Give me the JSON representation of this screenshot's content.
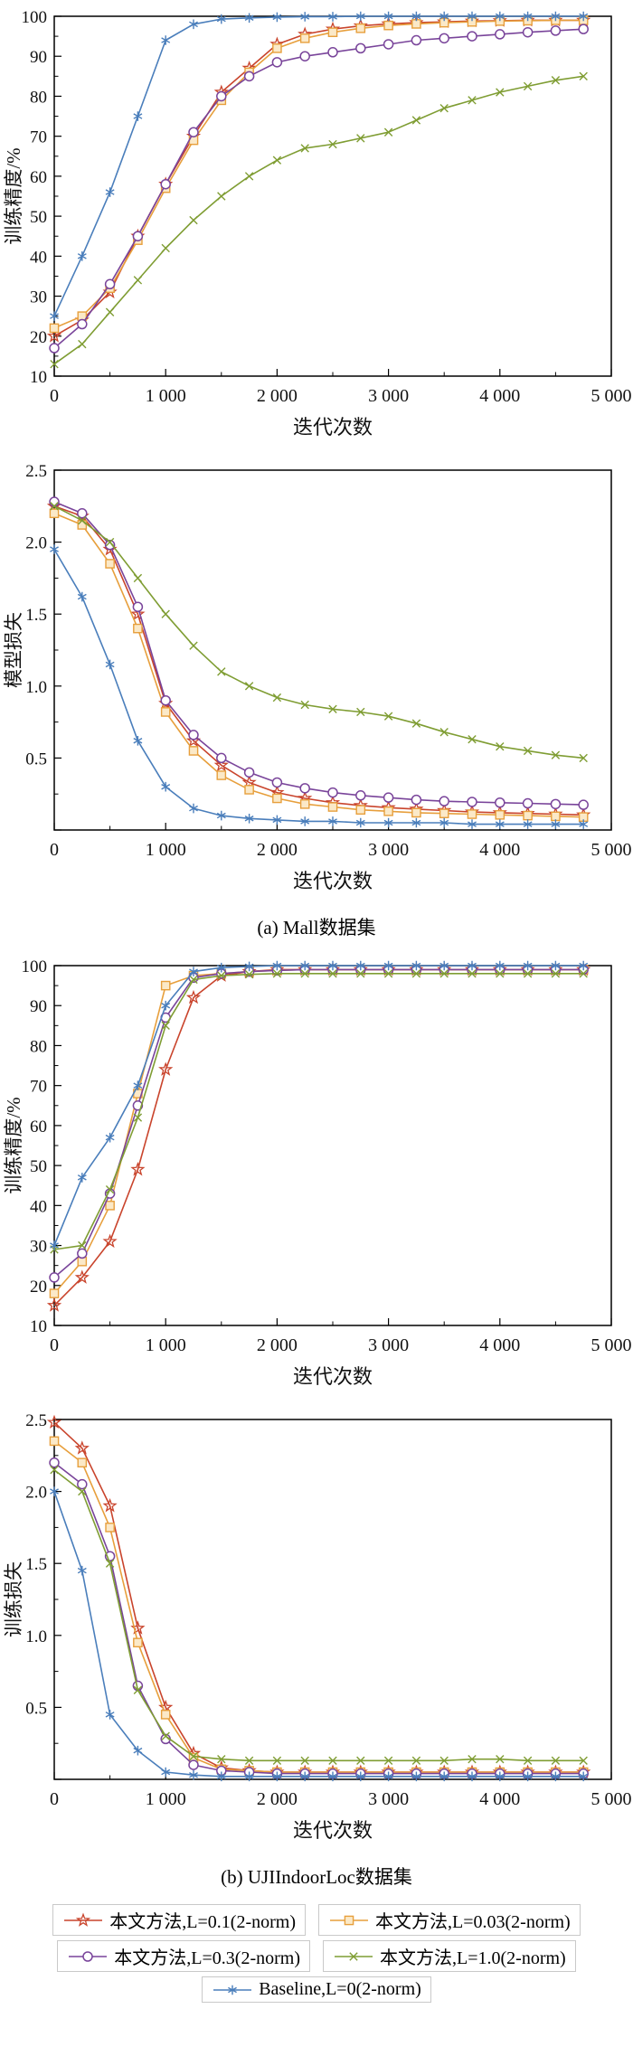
{
  "page": {
    "background": "#ffffff"
  },
  "captions": {
    "a": "(a) Mall数据集",
    "b": "(b) UJIIndoorLoc数据集"
  },
  "legend": {
    "position": "below-figure",
    "items": [
      {
        "label": "本文方法,L=0.1(2-norm)",
        "color": "#c9442c",
        "marker": "star"
      },
      {
        "label": "本文方法,L=0.03(2-norm)",
        "color": "#e79f3c",
        "marker": "square"
      },
      {
        "label": "本文方法,L=0.3(2-norm)",
        "color": "#79449a",
        "marker": "circle"
      },
      {
        "label": "本文方法,L=1.0(2-norm)",
        "color": "#7f9d33",
        "marker": "x"
      },
      {
        "label": "Baseline,L=0(2-norm)",
        "color": "#4a7ebb",
        "marker": "asterisk"
      }
    ]
  },
  "chart_data": [
    {
      "id": "mall-accuracy",
      "type": "line",
      "title": "",
      "xlabel": "迭代次数",
      "ylabel": "训练精度/%",
      "xlim": [
        0,
        5000
      ],
      "ylim": [
        10,
        100
      ],
      "grid": false,
      "xticks": [
        0,
        1000,
        2000,
        3000,
        4000,
        5000
      ],
      "xtick_labels": [
        "0",
        "1 000",
        "2 000",
        "3 000",
        "4 000",
        "5 000"
      ],
      "yticks": [
        10,
        20,
        30,
        40,
        50,
        60,
        70,
        80,
        90,
        100
      ],
      "ytick_labels": [
        "10",
        "20",
        "30",
        "40",
        "50",
        "60",
        "70",
        "80",
        "90",
        "100"
      ],
      "x": [
        0,
        250,
        500,
        750,
        1000,
        1250,
        1500,
        1750,
        2000,
        2250,
        2500,
        2750,
        3000,
        3250,
        3500,
        3750,
        4000,
        4250,
        4500,
        4750
      ],
      "series": [
        {
          "name": "本文方法,L=0.1(2-norm)",
          "color": "#c9442c",
          "marker": "star",
          "values": [
            20,
            24,
            31,
            45,
            58,
            70,
            81,
            87,
            93,
            95.5,
            96.8,
            97.6,
            98.1,
            98.4,
            98.6,
            98.8,
            98.9,
            99,
            99,
            99
          ]
        },
        {
          "name": "本文方法,L=0.03(2-norm)",
          "color": "#e79f3c",
          "marker": "square",
          "values": [
            22,
            25,
            32,
            44,
            57,
            69,
            79,
            86,
            92,
            94.5,
            96,
            97,
            97.7,
            98.1,
            98.4,
            98.6,
            98.8,
            98.9,
            99,
            99
          ]
        },
        {
          "name": "本文方法,L=0.3(2-norm)",
          "color": "#79449a",
          "marker": "circle",
          "values": [
            17,
            23,
            33,
            45,
            58,
            71,
            80,
            85,
            88.5,
            90,
            91,
            92,
            93,
            94,
            94.5,
            95,
            95.5,
            96,
            96.4,
            96.8
          ]
        },
        {
          "name": "本文方法,L=1.0(2-norm)",
          "color": "#7f9d33",
          "marker": "x",
          "values": [
            13,
            18,
            26,
            34,
            42,
            49,
            55,
            60,
            64,
            67,
            68,
            69.5,
            71,
            74,
            77,
            79,
            81,
            82.5,
            84,
            85
          ]
        },
        {
          "name": "Baseline,L=0(2-norm)",
          "color": "#4a7ebb",
          "marker": "asterisk",
          "values": [
            25,
            40,
            56,
            75,
            94,
            98,
            99.3,
            99.6,
            99.8,
            99.9,
            99.9,
            100,
            100,
            100,
            100,
            100,
            100,
            100,
            100,
            100
          ]
        }
      ]
    },
    {
      "id": "mall-loss",
      "type": "line",
      "title": "",
      "xlabel": "迭代次数",
      "ylabel": "模型损失",
      "xlim": [
        0,
        5000
      ],
      "ylim": [
        0,
        2.5
      ],
      "grid": false,
      "xticks": [
        0,
        1000,
        2000,
        3000,
        4000,
        5000
      ],
      "xtick_labels": [
        "0",
        "1 000",
        "2 000",
        "3 000",
        "4 000",
        "5 000"
      ],
      "yticks": [
        0,
        0.5,
        1.0,
        1.5,
        2.0,
        2.5
      ],
      "ytick_labels": [
        "",
        "0.5",
        "1.0",
        "1.5",
        "2.0",
        "2.5"
      ],
      "x": [
        0,
        250,
        500,
        750,
        1000,
        1250,
        1500,
        1750,
        2000,
        2250,
        2500,
        2750,
        3000,
        3250,
        3500,
        3750,
        4000,
        4250,
        4500,
        4750
      ],
      "series": [
        {
          "name": "本文方法,L=0.1(2-norm)",
          "color": "#c9442c",
          "marker": "star",
          "values": [
            2.25,
            2.18,
            1.95,
            1.5,
            0.88,
            0.62,
            0.45,
            0.33,
            0.26,
            0.22,
            0.19,
            0.17,
            0.155,
            0.145,
            0.135,
            0.125,
            0.12,
            0.115,
            0.11,
            0.105
          ]
        },
        {
          "name": "本文方法,L=0.03(2-norm)",
          "color": "#e79f3c",
          "marker": "square",
          "values": [
            2.2,
            2.12,
            1.85,
            1.4,
            0.82,
            0.55,
            0.38,
            0.28,
            0.22,
            0.18,
            0.16,
            0.14,
            0.13,
            0.12,
            0.115,
            0.11,
            0.105,
            0.1,
            0.095,
            0.09
          ]
        },
        {
          "name": "本文方法,L=0.3(2-norm)",
          "color": "#79449a",
          "marker": "circle",
          "values": [
            2.28,
            2.2,
            1.98,
            1.55,
            0.9,
            0.66,
            0.5,
            0.4,
            0.33,
            0.29,
            0.26,
            0.24,
            0.225,
            0.21,
            0.2,
            0.195,
            0.19,
            0.185,
            0.18,
            0.175
          ]
        },
        {
          "name": "本文方法,L=1.0(2-norm)",
          "color": "#7f9d33",
          "marker": "x",
          "values": [
            2.25,
            2.15,
            2.0,
            1.75,
            1.5,
            1.28,
            1.1,
            1.0,
            0.92,
            0.87,
            0.84,
            0.82,
            0.79,
            0.74,
            0.68,
            0.63,
            0.58,
            0.55,
            0.52,
            0.5
          ]
        },
        {
          "name": "Baseline,L=0(2-norm)",
          "color": "#4a7ebb",
          "marker": "asterisk",
          "values": [
            1.95,
            1.62,
            1.15,
            0.62,
            0.3,
            0.15,
            0.1,
            0.08,
            0.07,
            0.06,
            0.06,
            0.05,
            0.05,
            0.05,
            0.05,
            0.04,
            0.04,
            0.04,
            0.04,
            0.04
          ]
        }
      ]
    },
    {
      "id": "uji-accuracy",
      "type": "line",
      "title": "",
      "xlabel": "迭代次数",
      "ylabel": "训练精度/%",
      "xlim": [
        0,
        5000
      ],
      "ylim": [
        10,
        100
      ],
      "grid": false,
      "xticks": [
        0,
        1000,
        2000,
        3000,
        4000,
        5000
      ],
      "xtick_labels": [
        "0",
        "1 000",
        "2 000",
        "3 000",
        "4 000",
        "5 000"
      ],
      "yticks": [
        10,
        20,
        30,
        40,
        50,
        60,
        70,
        80,
        90,
        100
      ],
      "ytick_labels": [
        "10",
        "20",
        "30",
        "40",
        "50",
        "60",
        "70",
        "80",
        "90",
        "100"
      ],
      "x": [
        0,
        250,
        500,
        750,
        1000,
        1250,
        1500,
        1750,
        2000,
        2250,
        2500,
        2750,
        3000,
        3250,
        3500,
        3750,
        4000,
        4250,
        4500,
        4750
      ],
      "series": [
        {
          "name": "本文方法,L=0.1(2-norm)",
          "color": "#c9442c",
          "marker": "star",
          "values": [
            15,
            22,
            31,
            49,
            74,
            92,
            97.5,
            98.5,
            99,
            99,
            99,
            99,
            99,
            99,
            99,
            99,
            99,
            99,
            99,
            99
          ]
        },
        {
          "name": "本文方法,L=0.03(2-norm)",
          "color": "#e79f3c",
          "marker": "square",
          "values": [
            18,
            26,
            40,
            68,
            95,
            97.5,
            98,
            98.5,
            98.8,
            99,
            99,
            99,
            99,
            99,
            99,
            99,
            99,
            99,
            99,
            99
          ]
        },
        {
          "name": "本文方法,L=0.3(2-norm)",
          "color": "#79449a",
          "marker": "circle",
          "values": [
            22,
            28,
            43,
            65,
            87,
            97,
            98,
            98.5,
            98.8,
            99,
            99,
            99,
            99,
            99,
            99,
            99,
            99,
            99,
            99,
            99
          ]
        },
        {
          "name": "本文方法,L=1.0(2-norm)",
          "color": "#7f9d33",
          "marker": "x",
          "values": [
            29,
            30,
            44,
            62,
            85,
            96.5,
            97.5,
            97.8,
            98,
            98,
            98,
            98,
            98,
            98,
            98,
            98,
            98,
            98,
            98,
            98
          ]
        },
        {
          "name": "Baseline,L=0(2-norm)",
          "color": "#4a7ebb",
          "marker": "asterisk",
          "values": [
            30,
            47,
            57,
            70,
            90,
            98.5,
            99.5,
            99.8,
            100,
            100,
            100,
            100,
            100,
            100,
            100,
            100,
            100,
            100,
            100,
            100
          ]
        }
      ]
    },
    {
      "id": "uji-loss",
      "type": "line",
      "title": "",
      "xlabel": "迭代次数",
      "ylabel": "训练损失",
      "xlim": [
        0,
        5000
      ],
      "ylim": [
        0,
        2.5
      ],
      "grid": false,
      "xticks": [
        0,
        1000,
        2000,
        3000,
        4000,
        5000
      ],
      "xtick_labels": [
        "0",
        "1 000",
        "2 000",
        "3 000",
        "4 000",
        "5 000"
      ],
      "yticks": [
        0,
        0.5,
        1.0,
        1.5,
        2.0,
        2.5
      ],
      "ytick_labels": [
        "",
        "0.5",
        "1.0",
        "1.5",
        "2.0",
        "2.5"
      ],
      "x": [
        0,
        250,
        500,
        750,
        1000,
        1250,
        1500,
        1750,
        2000,
        2250,
        2500,
        2750,
        3000,
        3250,
        3500,
        3750,
        4000,
        4250,
        4500,
        4750
      ],
      "series": [
        {
          "name": "本文方法,L=0.1(2-norm)",
          "color": "#c9442c",
          "marker": "star",
          "values": [
            2.48,
            2.3,
            1.9,
            1.05,
            0.5,
            0.18,
            0.08,
            0.06,
            0.05,
            0.05,
            0.05,
            0.05,
            0.05,
            0.05,
            0.05,
            0.05,
            0.05,
            0.05,
            0.05,
            0.05
          ]
        },
        {
          "name": "本文方法,L=0.03(2-norm)",
          "color": "#e79f3c",
          "marker": "square",
          "values": [
            2.35,
            2.2,
            1.75,
            0.95,
            0.45,
            0.15,
            0.07,
            0.06,
            0.05,
            0.05,
            0.05,
            0.05,
            0.05,
            0.05,
            0.05,
            0.05,
            0.05,
            0.05,
            0.05,
            0.05
          ]
        },
        {
          "name": "本文方法,L=0.3(2-norm)",
          "color": "#79449a",
          "marker": "circle",
          "values": [
            2.2,
            2.05,
            1.55,
            0.65,
            0.28,
            0.1,
            0.06,
            0.05,
            0.04,
            0.04,
            0.04,
            0.04,
            0.04,
            0.04,
            0.04,
            0.04,
            0.04,
            0.04,
            0.04,
            0.04
          ]
        },
        {
          "name": "本文方法,L=1.0(2-norm)",
          "color": "#7f9d33",
          "marker": "x",
          "values": [
            2.15,
            2.0,
            1.5,
            0.62,
            0.3,
            0.16,
            0.14,
            0.13,
            0.13,
            0.13,
            0.13,
            0.13,
            0.13,
            0.13,
            0.13,
            0.14,
            0.14,
            0.13,
            0.13,
            0.13
          ]
        },
        {
          "name": "Baseline,L=0(2-norm)",
          "color": "#4a7ebb",
          "marker": "asterisk",
          "values": [
            2.0,
            1.45,
            0.45,
            0.2,
            0.05,
            0.03,
            0.02,
            0.02,
            0.02,
            0.02,
            0.02,
            0.02,
            0.02,
            0.02,
            0.02,
            0.02,
            0.02,
            0.02,
            0.02,
            0.02
          ]
        }
      ]
    }
  ]
}
